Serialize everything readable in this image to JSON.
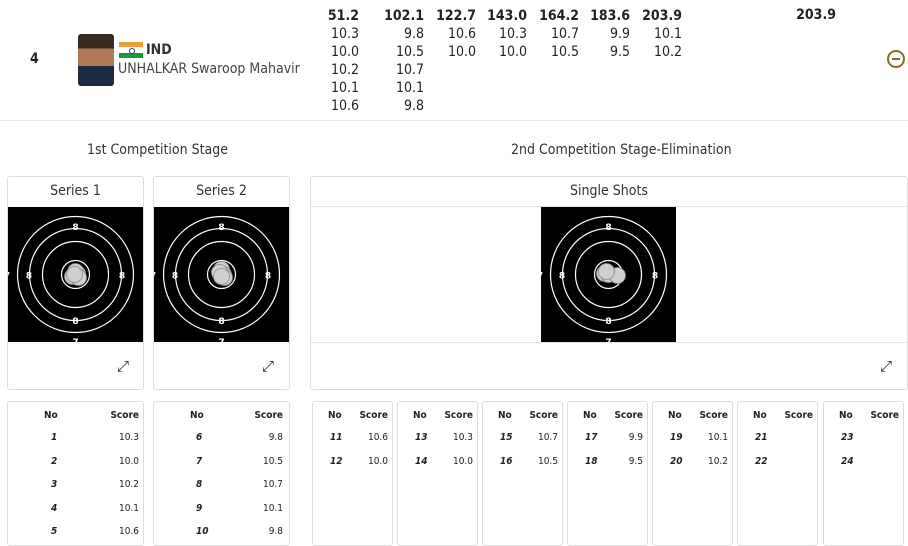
{
  "athlete": {
    "rank": "4",
    "noc": "IND",
    "name": "UNHALKAR Swaroop Mahavir",
    "total": "203.9"
  },
  "score_columns": [
    [
      "51.2",
      "10.3",
      "10.0",
      "10.2",
      "10.1",
      "10.6"
    ],
    [
      "102.1",
      "9.8",
      "10.5",
      "10.7",
      "10.1",
      "9.8"
    ],
    [
      "122.7",
      "10.6",
      "10.0"
    ],
    [
      "143.0",
      "10.3",
      "10.0"
    ],
    [
      "164.2",
      "10.7",
      "10.5"
    ],
    [
      "183.6",
      "9.9",
      "9.5"
    ],
    [
      "203.9",
      "10.1",
      "10.2"
    ]
  ],
  "stages": {
    "first": "1st Competition Stage",
    "second": "2nd Competition Stage-Elimination"
  },
  "cards": {
    "series1": "Series 1",
    "series2": "Series 2",
    "single": "Single Shots"
  },
  "target_ring_label": "8",
  "target_edge_label": "7",
  "table_headers": {
    "no": "No",
    "score": "Score"
  },
  "series1_shots": [
    {
      "no": "1",
      "score": "10.3"
    },
    {
      "no": "2",
      "score": "10.0"
    },
    {
      "no": "3",
      "score": "10.2"
    },
    {
      "no": "4",
      "score": "10.1"
    },
    {
      "no": "5",
      "score": "10.6"
    }
  ],
  "series2_shots": [
    {
      "no": "6",
      "score": "9.8"
    },
    {
      "no": "7",
      "score": "10.5"
    },
    {
      "no": "8",
      "score": "10.7"
    },
    {
      "no": "9",
      "score": "10.1"
    },
    {
      "no": "10",
      "score": "9.8"
    }
  ],
  "elimination_pairs": [
    [
      {
        "no": "11",
        "score": "10.6"
      },
      {
        "no": "12",
        "score": "10.0"
      }
    ],
    [
      {
        "no": "13",
        "score": "10.3"
      },
      {
        "no": "14",
        "score": "10.0"
      }
    ],
    [
      {
        "no": "15",
        "score": "10.7"
      },
      {
        "no": "16",
        "score": "10.5"
      }
    ],
    [
      {
        "no": "17",
        "score": "9.9"
      },
      {
        "no": "18",
        "score": "9.5"
      }
    ],
    [
      {
        "no": "19",
        "score": "10.1"
      },
      {
        "no": "20",
        "score": "10.2"
      }
    ],
    [
      {
        "no": "21",
        "score": ""
      },
      {
        "no": "22",
        "score": ""
      }
    ],
    [
      {
        "no": "23",
        "score": ""
      },
      {
        "no": "24",
        "score": ""
      }
    ]
  ],
  "icons": {
    "expand": "expand-arrows-icon",
    "collapse": "minus-circle-icon"
  }
}
